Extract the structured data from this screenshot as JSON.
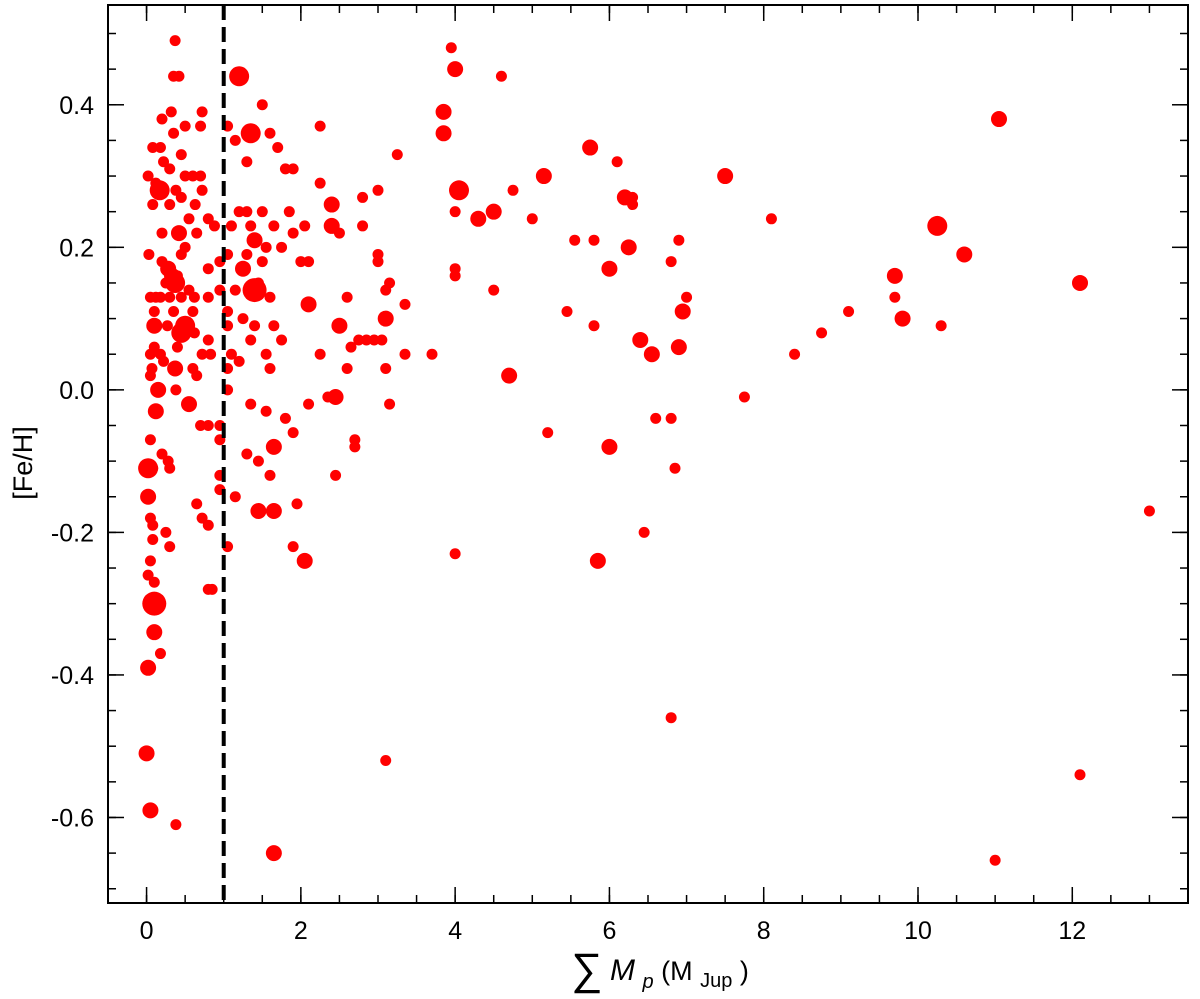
{
  "chart_data": {
    "type": "scatter",
    "title": "",
    "xlabel": {
      "symbol": "∑",
      "var": "M",
      "sub": "p",
      "unit_open": " (M",
      "unit_sub": "Jup",
      "unit_close": ")"
    },
    "ylabel": "[Fe/H]",
    "xlim": [
      -0.5,
      13.5
    ],
    "ylim": [
      -0.72,
      0.54
    ],
    "x_ticks": [
      0,
      2,
      4,
      6,
      8,
      10,
      12
    ],
    "x_tick_labels": [
      "0",
      "2",
      "4",
      "6",
      "8",
      "10",
      "12"
    ],
    "y_ticks": [
      0.4,
      0.2,
      0.0,
      -0.2,
      -0.4,
      -0.6
    ],
    "y_tick_labels": [
      "0.4",
      "0.2",
      "0.0",
      "-0.2",
      "-0.4",
      "-0.6"
    ],
    "x_minor_step": 0.5,
    "y_minor_step": 0.05,
    "grid": false,
    "legend": "none",
    "marker_color": "#ff0000",
    "reference_line": {
      "x": 1.0,
      "style": "dashed",
      "color": "#000000"
    },
    "point_size_note": "marker size varies",
    "points": [
      {
        "x": 0.37,
        "y": 0.49,
        "s": 1
      },
      {
        "x": 0.35,
        "y": 0.44,
        "s": 1
      },
      {
        "x": 0.42,
        "y": 0.44,
        "s": 1
      },
      {
        "x": 0.2,
        "y": 0.38,
        "s": 1
      },
      {
        "x": 0.32,
        "y": 0.39,
        "s": 1
      },
      {
        "x": 0.5,
        "y": 0.37,
        "s": 1
      },
      {
        "x": 0.72,
        "y": 0.39,
        "s": 1
      },
      {
        "x": 0.7,
        "y": 0.37,
        "s": 1
      },
      {
        "x": 0.08,
        "y": 0.34,
        "s": 1
      },
      {
        "x": 0.18,
        "y": 0.34,
        "s": 1
      },
      {
        "x": 0.35,
        "y": 0.36,
        "s": 1
      },
      {
        "x": 0.22,
        "y": 0.32,
        "s": 1
      },
      {
        "x": 0.45,
        "y": 0.33,
        "s": 1
      },
      {
        "x": 0.02,
        "y": 0.3,
        "s": 1
      },
      {
        "x": 0.12,
        "y": 0.29,
        "s": 1
      },
      {
        "x": 0.3,
        "y": 0.31,
        "s": 1
      },
      {
        "x": 0.5,
        "y": 0.3,
        "s": 1
      },
      {
        "x": 0.6,
        "y": 0.3,
        "s": 1
      },
      {
        "x": 0.7,
        "y": 0.3,
        "s": 1
      },
      {
        "x": 0.17,
        "y": 0.28,
        "s": 3
      },
      {
        "x": 0.38,
        "y": 0.28,
        "s": 1
      },
      {
        "x": 0.08,
        "y": 0.26,
        "s": 1
      },
      {
        "x": 0.3,
        "y": 0.26,
        "s": 1
      },
      {
        "x": 0.45,
        "y": 0.27,
        "s": 1
      },
      {
        "x": 0.63,
        "y": 0.26,
        "s": 1
      },
      {
        "x": 0.72,
        "y": 0.28,
        "s": 1
      },
      {
        "x": 0.55,
        "y": 0.24,
        "s": 1
      },
      {
        "x": 0.8,
        "y": 0.24,
        "s": 1
      },
      {
        "x": 0.42,
        "y": 0.22,
        "s": 2
      },
      {
        "x": 0.2,
        "y": 0.22,
        "s": 1
      },
      {
        "x": 0.65,
        "y": 0.22,
        "s": 1
      },
      {
        "x": 0.88,
        "y": 0.23,
        "s": 1
      },
      {
        "x": 0.5,
        "y": 0.2,
        "s": 1
      },
      {
        "x": 0.45,
        "y": 0.19,
        "s": 1
      },
      {
        "x": 0.03,
        "y": 0.19,
        "s": 1
      },
      {
        "x": 0.2,
        "y": 0.18,
        "s": 1
      },
      {
        "x": 0.28,
        "y": 0.17,
        "s": 2
      },
      {
        "x": 0.33,
        "y": 0.16,
        "s": 2
      },
      {
        "x": 0.4,
        "y": 0.16,
        "s": 1
      },
      {
        "x": 0.8,
        "y": 0.17,
        "s": 1
      },
      {
        "x": 0.95,
        "y": 0.18,
        "s": 1
      },
      {
        "x": 0.25,
        "y": 0.15,
        "s": 1
      },
      {
        "x": 0.37,
        "y": 0.15,
        "s": 3
      },
      {
        "x": 0.55,
        "y": 0.14,
        "s": 1
      },
      {
        "x": 0.95,
        "y": 0.14,
        "s": 1
      },
      {
        "x": 0.05,
        "y": 0.13,
        "s": 1
      },
      {
        "x": 0.12,
        "y": 0.13,
        "s": 1
      },
      {
        "x": 0.18,
        "y": 0.13,
        "s": 1
      },
      {
        "x": 0.3,
        "y": 0.13,
        "s": 1
      },
      {
        "x": 0.45,
        "y": 0.13,
        "s": 1
      },
      {
        "x": 0.62,
        "y": 0.13,
        "s": 1
      },
      {
        "x": 0.8,
        "y": 0.13,
        "s": 1
      },
      {
        "x": 0.1,
        "y": 0.11,
        "s": 1
      },
      {
        "x": 0.35,
        "y": 0.11,
        "s": 1
      },
      {
        "x": 0.6,
        "y": 0.11,
        "s": 1
      },
      {
        "x": 0.1,
        "y": 0.09,
        "s": 2
      },
      {
        "x": 0.27,
        "y": 0.09,
        "s": 1
      },
      {
        "x": 0.45,
        "y": 0.08,
        "s": 3
      },
      {
        "x": 0.5,
        "y": 0.09,
        "s": 3
      },
      {
        "x": 0.62,
        "y": 0.08,
        "s": 1
      },
      {
        "x": 0.8,
        "y": 0.07,
        "s": 1
      },
      {
        "x": 0.05,
        "y": 0.05,
        "s": 1
      },
      {
        "x": 0.1,
        "y": 0.06,
        "s": 1
      },
      {
        "x": 0.18,
        "y": 0.05,
        "s": 1
      },
      {
        "x": 0.4,
        "y": 0.06,
        "s": 1
      },
      {
        "x": 0.72,
        "y": 0.05,
        "s": 1
      },
      {
        "x": 0.83,
        "y": 0.05,
        "s": 1
      },
      {
        "x": 0.07,
        "y": 0.03,
        "s": 1
      },
      {
        "x": 0.22,
        "y": 0.04,
        "s": 1
      },
      {
        "x": 0.37,
        "y": 0.03,
        "s": 2
      },
      {
        "x": 0.6,
        "y": 0.03,
        "s": 1
      },
      {
        "x": 0.65,
        "y": 0.02,
        "s": 1
      },
      {
        "x": 0.05,
        "y": 0.02,
        "s": 1
      },
      {
        "x": 0.15,
        "y": 0.0,
        "s": 2
      },
      {
        "x": 0.38,
        "y": 0.0,
        "s": 1
      },
      {
        "x": 0.55,
        "y": -0.02,
        "s": 2
      },
      {
        "x": 0.12,
        "y": -0.03,
        "s": 2
      },
      {
        "x": 0.05,
        "y": -0.07,
        "s": 1
      },
      {
        "x": 0.7,
        "y": -0.05,
        "s": 1
      },
      {
        "x": 0.8,
        "y": -0.05,
        "s": 1
      },
      {
        "x": 0.95,
        "y": -0.05,
        "s": 1
      },
      {
        "x": 0.95,
        "y": -0.07,
        "s": 1
      },
      {
        "x": 0.2,
        "y": -0.09,
        "s": 1
      },
      {
        "x": 0.28,
        "y": -0.1,
        "s": 1
      },
      {
        "x": 0.02,
        "y": -0.11,
        "s": 3
      },
      {
        "x": 0.08,
        "y": -0.11,
        "s": 1
      },
      {
        "x": 0.3,
        "y": -0.11,
        "s": 1
      },
      {
        "x": 0.95,
        "y": -0.12,
        "s": 1
      },
      {
        "x": 0.95,
        "y": -0.14,
        "s": 1
      },
      {
        "x": 0.02,
        "y": -0.15,
        "s": 2
      },
      {
        "x": 0.65,
        "y": -0.16,
        "s": 1
      },
      {
        "x": 0.05,
        "y": -0.18,
        "s": 1
      },
      {
        "x": 0.72,
        "y": -0.18,
        "s": 1
      },
      {
        "x": 0.08,
        "y": -0.19,
        "s": 1
      },
      {
        "x": 0.8,
        "y": -0.19,
        "s": 1
      },
      {
        "x": 0.25,
        "y": -0.2,
        "s": 1
      },
      {
        "x": 0.08,
        "y": -0.21,
        "s": 1
      },
      {
        "x": 0.3,
        "y": -0.22,
        "s": 1
      },
      {
        "x": 0.05,
        "y": -0.24,
        "s": 1
      },
      {
        "x": 0.02,
        "y": -0.26,
        "s": 1
      },
      {
        "x": 0.1,
        "y": -0.27,
        "s": 1
      },
      {
        "x": 0.8,
        "y": -0.28,
        "s": 1
      },
      {
        "x": 0.85,
        "y": -0.28,
        "s": 1
      },
      {
        "x": 0.1,
        "y": -0.3,
        "s": 4
      },
      {
        "x": 0.1,
        "y": -0.34,
        "s": 2
      },
      {
        "x": 0.18,
        "y": -0.37,
        "s": 1
      },
      {
        "x": 0.02,
        "y": -0.39,
        "s": 2
      },
      {
        "x": 0.0,
        "y": -0.51,
        "s": 2
      },
      {
        "x": 0.05,
        "y": -0.59,
        "s": 2
      },
      {
        "x": 0.38,
        "y": -0.61,
        "s": 1
      },
      {
        "x": 1.2,
        "y": 0.44,
        "s": 3
      },
      {
        "x": 1.5,
        "y": 0.4,
        "s": 1
      },
      {
        "x": 1.05,
        "y": 0.37,
        "s": 1
      },
      {
        "x": 1.35,
        "y": 0.36,
        "s": 3
      },
      {
        "x": 1.6,
        "y": 0.36,
        "s": 1
      },
      {
        "x": 1.15,
        "y": 0.35,
        "s": 1
      },
      {
        "x": 1.7,
        "y": 0.34,
        "s": 1
      },
      {
        "x": 1.3,
        "y": 0.32,
        "s": 1
      },
      {
        "x": 1.8,
        "y": 0.31,
        "s": 1
      },
      {
        "x": 1.9,
        "y": 0.31,
        "s": 1
      },
      {
        "x": 1.2,
        "y": 0.25,
        "s": 1
      },
      {
        "x": 1.3,
        "y": 0.25,
        "s": 1
      },
      {
        "x": 1.5,
        "y": 0.25,
        "s": 1
      },
      {
        "x": 1.85,
        "y": 0.25,
        "s": 1
      },
      {
        "x": 1.1,
        "y": 0.23,
        "s": 1
      },
      {
        "x": 1.35,
        "y": 0.23,
        "s": 1
      },
      {
        "x": 1.65,
        "y": 0.23,
        "s": 1
      },
      {
        "x": 1.4,
        "y": 0.21,
        "s": 2
      },
      {
        "x": 1.55,
        "y": 0.2,
        "s": 1
      },
      {
        "x": 1.75,
        "y": 0.2,
        "s": 1
      },
      {
        "x": 1.9,
        "y": 0.22,
        "s": 1
      },
      {
        "x": 1.05,
        "y": 0.19,
        "s": 1
      },
      {
        "x": 1.3,
        "y": 0.19,
        "s": 1
      },
      {
        "x": 1.5,
        "y": 0.18,
        "s": 1
      },
      {
        "x": 1.25,
        "y": 0.17,
        "s": 2
      },
      {
        "x": 1.45,
        "y": 0.15,
        "s": 1
      },
      {
        "x": 1.15,
        "y": 0.14,
        "s": 1
      },
      {
        "x": 1.4,
        "y": 0.14,
        "s": 4
      },
      {
        "x": 1.6,
        "y": 0.13,
        "s": 1
      },
      {
        "x": 1.05,
        "y": 0.11,
        "s": 1
      },
      {
        "x": 1.25,
        "y": 0.1,
        "s": 1
      },
      {
        "x": 1.05,
        "y": 0.09,
        "s": 1
      },
      {
        "x": 1.4,
        "y": 0.09,
        "s": 1
      },
      {
        "x": 1.65,
        "y": 0.09,
        "s": 1
      },
      {
        "x": 1.35,
        "y": 0.07,
        "s": 1
      },
      {
        "x": 1.75,
        "y": 0.07,
        "s": 1
      },
      {
        "x": 1.1,
        "y": 0.05,
        "s": 1
      },
      {
        "x": 1.55,
        "y": 0.05,
        "s": 1
      },
      {
        "x": 1.05,
        "y": 0.03,
        "s": 1
      },
      {
        "x": 1.2,
        "y": 0.04,
        "s": 1
      },
      {
        "x": 1.6,
        "y": 0.03,
        "s": 1
      },
      {
        "x": 1.05,
        "y": 0.0,
        "s": 1
      },
      {
        "x": 1.35,
        "y": -0.02,
        "s": 1
      },
      {
        "x": 1.55,
        "y": -0.03,
        "s": 1
      },
      {
        "x": 1.8,
        "y": -0.04,
        "s": 1
      },
      {
        "x": 1.65,
        "y": -0.08,
        "s": 2
      },
      {
        "x": 1.3,
        "y": -0.09,
        "s": 1
      },
      {
        "x": 1.45,
        "y": -0.1,
        "s": 1
      },
      {
        "x": 1.6,
        "y": -0.12,
        "s": 1
      },
      {
        "x": 1.15,
        "y": -0.15,
        "s": 1
      },
      {
        "x": 1.45,
        "y": -0.17,
        "s": 2
      },
      {
        "x": 1.65,
        "y": -0.17,
        "s": 2
      },
      {
        "x": 1.05,
        "y": -0.22,
        "s": 1
      },
      {
        "x": 1.65,
        "y": -0.65,
        "s": 2
      },
      {
        "x": 2.25,
        "y": 0.37,
        "s": 1
      },
      {
        "x": 2.25,
        "y": 0.29,
        "s": 1
      },
      {
        "x": 2.05,
        "y": 0.23,
        "s": 1
      },
      {
        "x": 2.4,
        "y": 0.26,
        "s": 2
      },
      {
        "x": 2.4,
        "y": 0.23,
        "s": 2
      },
      {
        "x": 2.5,
        "y": 0.22,
        "s": 1
      },
      {
        "x": 2.8,
        "y": 0.27,
        "s": 1
      },
      {
        "x": 3.0,
        "y": 0.28,
        "s": 1
      },
      {
        "x": 2.8,
        "y": 0.23,
        "s": 1
      },
      {
        "x": 2.0,
        "y": 0.18,
        "s": 1
      },
      {
        "x": 2.1,
        "y": 0.18,
        "s": 1
      },
      {
        "x": 3.0,
        "y": 0.19,
        "s": 1
      },
      {
        "x": 3.0,
        "y": 0.18,
        "s": 1
      },
      {
        "x": 2.1,
        "y": 0.12,
        "s": 2
      },
      {
        "x": 3.1,
        "y": 0.14,
        "s": 1
      },
      {
        "x": 3.15,
        "y": 0.15,
        "s": 1
      },
      {
        "x": 2.6,
        "y": 0.13,
        "s": 1
      },
      {
        "x": 3.35,
        "y": 0.12,
        "s": 1
      },
      {
        "x": 3.1,
        "y": 0.1,
        "s": 2
      },
      {
        "x": 2.5,
        "y": 0.09,
        "s": 2
      },
      {
        "x": 2.25,
        "y": 0.05,
        "s": 1
      },
      {
        "x": 2.75,
        "y": 0.07,
        "s": 1
      },
      {
        "x": 2.85,
        "y": 0.07,
        "s": 1
      },
      {
        "x": 2.95,
        "y": 0.07,
        "s": 1
      },
      {
        "x": 3.05,
        "y": 0.07,
        "s": 1
      },
      {
        "x": 2.65,
        "y": 0.06,
        "s": 1
      },
      {
        "x": 2.6,
        "y": 0.03,
        "s": 1
      },
      {
        "x": 3.1,
        "y": 0.03,
        "s": 1
      },
      {
        "x": 3.35,
        "y": 0.05,
        "s": 1
      },
      {
        "x": 3.7,
        "y": 0.05,
        "s": 1
      },
      {
        "x": 3.25,
        "y": 0.33,
        "s": 1
      },
      {
        "x": 2.1,
        "y": -0.02,
        "s": 1
      },
      {
        "x": 2.35,
        "y": -0.01,
        "s": 1
      },
      {
        "x": 2.45,
        "y": -0.01,
        "s": 2
      },
      {
        "x": 3.15,
        "y": -0.02,
        "s": 1
      },
      {
        "x": 1.9,
        "y": -0.06,
        "s": 1
      },
      {
        "x": 2.7,
        "y": -0.07,
        "s": 1
      },
      {
        "x": 2.7,
        "y": -0.08,
        "s": 1
      },
      {
        "x": 2.45,
        "y": -0.12,
        "s": 1
      },
      {
        "x": 1.95,
        "y": -0.16,
        "s": 1
      },
      {
        "x": 1.9,
        "y": -0.22,
        "s": 1
      },
      {
        "x": 2.05,
        "y": -0.24,
        "s": 2
      },
      {
        "x": 3.1,
        "y": -0.52,
        "s": 1
      },
      {
        "x": 3.95,
        "y": 0.48,
        "s": 1
      },
      {
        "x": 4.0,
        "y": 0.45,
        "s": 2
      },
      {
        "x": 3.85,
        "y": 0.39,
        "s": 2
      },
      {
        "x": 3.85,
        "y": 0.36,
        "s": 2
      },
      {
        "x": 4.05,
        "y": 0.28,
        "s": 3
      },
      {
        "x": 4.0,
        "y": 0.25,
        "s": 1
      },
      {
        "x": 4.3,
        "y": 0.24,
        "s": 2
      },
      {
        "x": 4.5,
        "y": 0.25,
        "s": 2
      },
      {
        "x": 4.6,
        "y": 0.44,
        "s": 1
      },
      {
        "x": 4.75,
        "y": 0.28,
        "s": 1
      },
      {
        "x": 5.0,
        "y": 0.24,
        "s": 1
      },
      {
        "x": 5.15,
        "y": 0.3,
        "s": 2
      },
      {
        "x": 4.0,
        "y": 0.17,
        "s": 1
      },
      {
        "x": 4.0,
        "y": 0.16,
        "s": 1
      },
      {
        "x": 4.5,
        "y": 0.14,
        "s": 1
      },
      {
        "x": 4.7,
        "y": 0.02,
        "s": 2
      },
      {
        "x": 5.2,
        "y": -0.06,
        "s": 1
      },
      {
        "x": 4.0,
        "y": -0.23,
        "s": 1
      },
      {
        "x": 5.45,
        "y": 0.11,
        "s": 1
      },
      {
        "x": 5.55,
        "y": 0.21,
        "s": 1
      },
      {
        "x": 5.75,
        "y": 0.34,
        "s": 2
      },
      {
        "x": 5.8,
        "y": 0.21,
        "s": 1
      },
      {
        "x": 5.8,
        "y": 0.09,
        "s": 1
      },
      {
        "x": 6.0,
        "y": 0.17,
        "s": 2
      },
      {
        "x": 6.1,
        "y": 0.32,
        "s": 1
      },
      {
        "x": 6.2,
        "y": 0.27,
        "s": 2
      },
      {
        "x": 6.3,
        "y": 0.27,
        "s": 1
      },
      {
        "x": 6.3,
        "y": 0.26,
        "s": 1
      },
      {
        "x": 6.25,
        "y": 0.2,
        "s": 2
      },
      {
        "x": 6.4,
        "y": 0.07,
        "s": 2
      },
      {
        "x": 6.55,
        "y": 0.05,
        "s": 2
      },
      {
        "x": 6.6,
        "y": -0.04,
        "s": 1
      },
      {
        "x": 6.8,
        "y": -0.04,
        "s": 1
      },
      {
        "x": 6.0,
        "y": -0.08,
        "s": 2
      },
      {
        "x": 6.45,
        "y": -0.2,
        "s": 1
      },
      {
        "x": 5.85,
        "y": -0.24,
        "s": 2
      },
      {
        "x": 6.85,
        "y": -0.11,
        "s": 1
      },
      {
        "x": 6.8,
        "y": -0.46,
        "s": 1
      },
      {
        "x": 6.8,
        "y": 0.18,
        "s": 1
      },
      {
        "x": 6.9,
        "y": 0.21,
        "s": 1
      },
      {
        "x": 7.0,
        "y": 0.13,
        "s": 1
      },
      {
        "x": 6.95,
        "y": 0.11,
        "s": 2
      },
      {
        "x": 6.9,
        "y": 0.06,
        "s": 2
      },
      {
        "x": 7.5,
        "y": 0.3,
        "s": 2
      },
      {
        "x": 7.75,
        "y": -0.01,
        "s": 1
      },
      {
        "x": 8.1,
        "y": 0.24,
        "s": 1
      },
      {
        "x": 8.4,
        "y": 0.05,
        "s": 1
      },
      {
        "x": 8.75,
        "y": 0.08,
        "s": 1
      },
      {
        "x": 9.1,
        "y": 0.11,
        "s": 1
      },
      {
        "x": 9.7,
        "y": 0.16,
        "s": 2
      },
      {
        "x": 9.7,
        "y": 0.13,
        "s": 1
      },
      {
        "x": 9.8,
        "y": 0.1,
        "s": 2
      },
      {
        "x": 10.25,
        "y": 0.23,
        "s": 3
      },
      {
        "x": 10.3,
        "y": 0.09,
        "s": 1
      },
      {
        "x": 10.6,
        "y": 0.19,
        "s": 2
      },
      {
        "x": 11.05,
        "y": 0.38,
        "s": 2
      },
      {
        "x": 12.1,
        "y": 0.15,
        "s": 2
      },
      {
        "x": 12.1,
        "y": -0.54,
        "s": 1
      },
      {
        "x": 11.0,
        "y": -0.66,
        "s": 1
      },
      {
        "x": 13.0,
        "y": -0.17,
        "s": 1
      }
    ]
  }
}
